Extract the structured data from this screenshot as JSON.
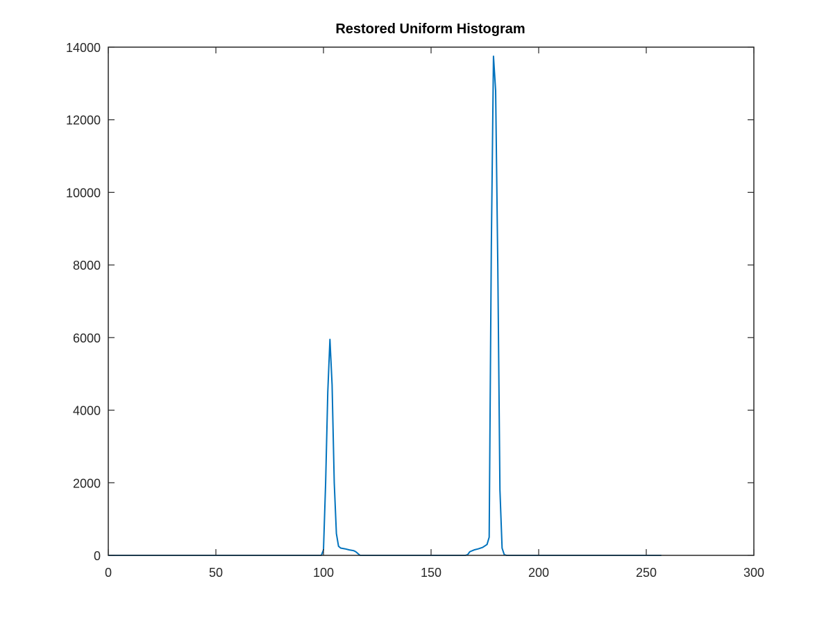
{
  "chart_data": {
    "type": "line",
    "title": "Restored Uniform Histogram",
    "xlabel": "",
    "ylabel": "",
    "xlim": [
      0,
      300
    ],
    "ylim": [
      0,
      14000
    ],
    "xticks": [
      0,
      50,
      100,
      150,
      200,
      250,
      300
    ],
    "yticks": [
      0,
      2000,
      4000,
      6000,
      8000,
      10000,
      12000,
      14000
    ],
    "grid": false,
    "colors": {
      "line": "#0072bd",
      "axes": "#262626"
    },
    "series": [
      {
        "x": [
          0,
          97,
          99,
          100,
          101,
          102,
          103,
          104,
          105,
          106,
          107,
          108,
          110,
          112,
          114,
          115,
          116,
          117,
          120,
          150,
          166,
          167,
          168,
          170,
          172,
          174,
          176,
          177,
          178,
          179,
          180,
          181,
          182,
          183,
          184,
          185,
          190,
          200,
          250,
          257
        ],
        "y": [
          0,
          0,
          0,
          150,
          2000,
          4500,
          5950,
          4700,
          2000,
          600,
          250,
          200,
          180,
          150,
          130,
          100,
          50,
          0,
          0,
          0,
          0,
          20,
          100,
          150,
          180,
          220,
          300,
          500,
          8500,
          13750,
          12800,
          8000,
          1800,
          200,
          20,
          0,
          0,
          0,
          0,
          0
        ]
      }
    ]
  }
}
